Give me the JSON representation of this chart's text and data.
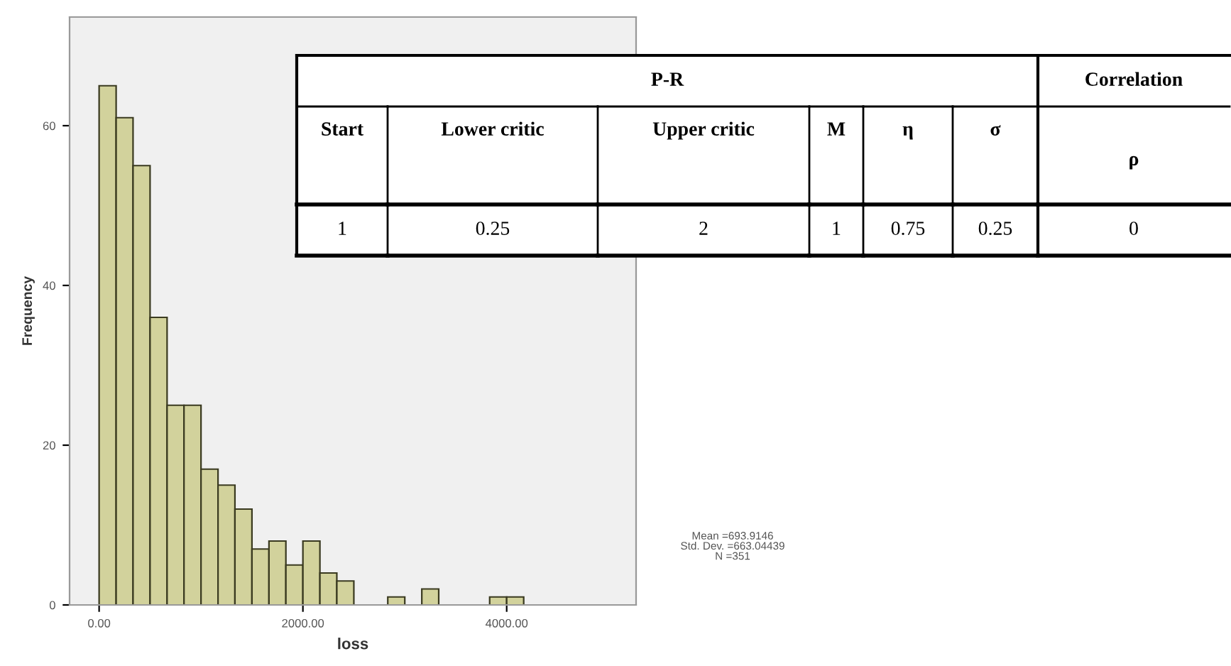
{
  "chart_data": [
    {
      "type": "histogram",
      "xlabel": "loss",
      "ylabel": "Frequency",
      "bins": [
        0,
        167,
        333,
        500,
        667,
        833,
        1000,
        1167,
        1333,
        1500,
        1667,
        1833,
        2000,
        2167,
        2333,
        2500,
        2667,
        2833,
        3000,
        3167,
        3333,
        3500,
        3667,
        3833,
        4000,
        4167
      ],
      "values": [
        65,
        61,
        55,
        36,
        25,
        25,
        17,
        15,
        12,
        7,
        8,
        5,
        8,
        4,
        3,
        0,
        0,
        1,
        0,
        2,
        0,
        0,
        0,
        1,
        1
      ],
      "color": "#d2d29c",
      "xlim": [
        -290,
        5270
      ],
      "ylim": [
        0,
        73.6
      ],
      "xticks": [
        {
          "value": 0,
          "label": "0.00"
        },
        {
          "value": 2000,
          "label": "2000.00"
        },
        {
          "value": 4000,
          "label": "4000.00"
        }
      ],
      "yticks": [
        0,
        20,
        40,
        60
      ],
      "grid": false,
      "annotations": [
        "Mean =693.9146\nStd. Dev. =663.04439\nN =351"
      ]
    },
    {
      "type": "other",
      "annotations": [
        "P-R",
        "Correlation",
        "Start",
        "Lower critic",
        "Upper critic",
        "M",
        "η",
        "σ",
        "ρ",
        "1",
        "0.25",
        "2",
        "1",
        "0.75",
        "0.25",
        "0"
      ]
    }
  ]
}
